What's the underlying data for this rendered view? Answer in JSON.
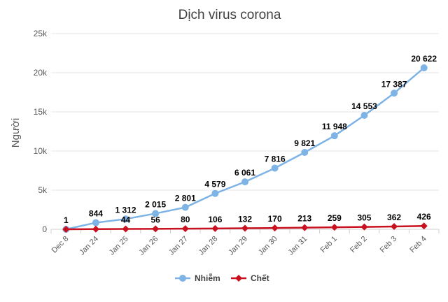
{
  "chart_data": {
    "type": "line",
    "title": "Dịch virus corona",
    "xlabel": "",
    "ylabel": "Người",
    "ylim": [
      0,
      25000
    ],
    "yticks": [
      0,
      5000,
      10000,
      15000,
      20000,
      25000
    ],
    "ytick_labels": [
      "0",
      "5k",
      "10k",
      "15k",
      "20k",
      "25k"
    ],
    "grid": "horizontal",
    "legend_position": "bottom",
    "categories": [
      "Dec 8",
      "Jan 24",
      "Jan 25",
      "Jan 26",
      "Jan 27",
      "Jan 28",
      "Jan 29",
      "Jan 30",
      "Jan 31",
      "Feb 1",
      "Feb 2",
      "Feb 3",
      "Feb 4"
    ],
    "series": [
      {
        "name": "Nhiễm",
        "color": "#7eb3e6",
        "marker": "circle",
        "values": [
          1,
          844,
          1312,
          2015,
          2801,
          4579,
          6061,
          7816,
          9821,
          11948,
          14553,
          17387,
          20622
        ],
        "labels": [
          "1",
          "844",
          "1 312",
          "2 015",
          "2 801",
          "4 579",
          "6 061",
          "7 816",
          "9 821",
          "11 948",
          "14 553",
          "17 387",
          "20 622"
        ]
      },
      {
        "name": "Chết",
        "color": "#c8101e",
        "marker": "diamond",
        "values": [
          0,
          25,
          44,
          56,
          80,
          106,
          132,
          170,
          213,
          259,
          305,
          362,
          426
        ],
        "labels": [
          "",
          "",
          "44",
          "56",
          "80",
          "106",
          "132",
          "170",
          "213",
          "259",
          "305",
          "362",
          "426"
        ]
      }
    ]
  }
}
